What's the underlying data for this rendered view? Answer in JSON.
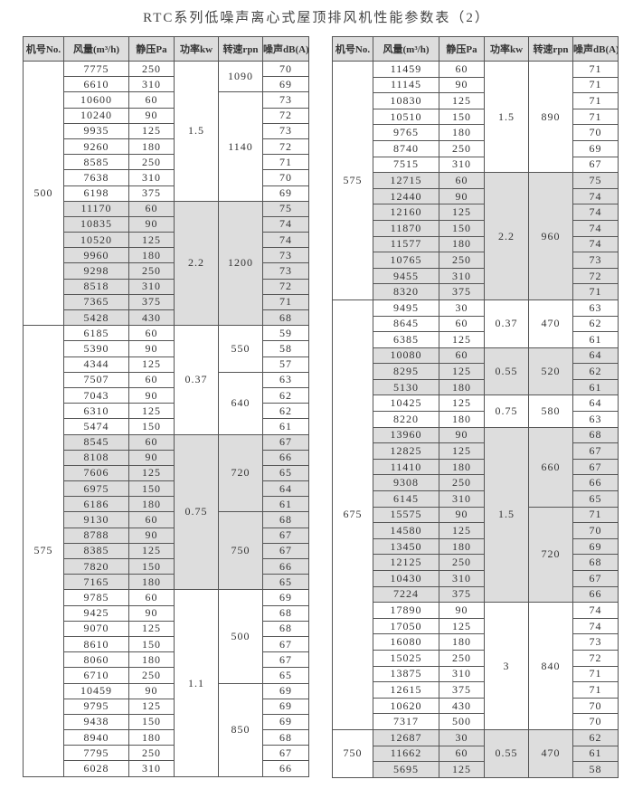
{
  "title": "RTC系列低噪声离心式屋顶排风机性能参数表（2）",
  "headers": [
    "机号No.",
    "风量(m³/h)",
    "静压Pa",
    "功率kw",
    "转速rpn",
    "噪声dB(A)"
  ],
  "colors": {
    "shaded": "#dddddd",
    "plain": "#ffffff",
    "border": "#555555"
  },
  "tables": [
    {
      "groups": [
        {
          "no": "500",
          "powers": [
            {
              "power": "1.5",
              "speeds": [
                {
                  "rpm": "1090",
                  "rows": [
                    [
                      "7775",
                      "250",
                      "70"
                    ],
                    [
                      "6610",
                      "310",
                      "69"
                    ]
                  ]
                },
                {
                  "rpm": "1140",
                  "rows": [
                    [
                      "10600",
                      "60",
                      "73"
                    ],
                    [
                      "10240",
                      "90",
                      "72"
                    ],
                    [
                      "9935",
                      "125",
                      "73"
                    ],
                    [
                      "9260",
                      "180",
                      "72"
                    ],
                    [
                      "8585",
                      "250",
                      "71"
                    ],
                    [
                      "7638",
                      "310",
                      "70"
                    ],
                    [
                      "6198",
                      "375",
                      "69"
                    ]
                  ]
                }
              ]
            },
            {
              "power": "2.2",
              "speeds": [
                {
                  "rpm": "1200",
                  "rows": [
                    [
                      "11170",
                      "60",
                      "75"
                    ],
                    [
                      "10835",
                      "90",
                      "74"
                    ],
                    [
                      "10520",
                      "125",
                      "74"
                    ],
                    [
                      "9960",
                      "180",
                      "73"
                    ],
                    [
                      "9298",
                      "250",
                      "73"
                    ],
                    [
                      "8518",
                      "310",
                      "72"
                    ],
                    [
                      "7365",
                      "375",
                      "71"
                    ],
                    [
                      "5428",
                      "430",
                      "68"
                    ]
                  ]
                }
              ]
            }
          ]
        },
        {
          "no": "575",
          "powers": [
            {
              "power": "0.37",
              "speeds": [
                {
                  "rpm": "550",
                  "rows": [
                    [
                      "6185",
                      "60",
                      "59"
                    ],
                    [
                      "5390",
                      "90",
                      "58"
                    ],
                    [
                      "4344",
                      "125",
                      "57"
                    ]
                  ]
                },
                {
                  "rpm": "640",
                  "rows": [
                    [
                      "7507",
                      "60",
                      "63"
                    ],
                    [
                      "7043",
                      "90",
                      "62"
                    ],
                    [
                      "6310",
                      "125",
                      "62"
                    ],
                    [
                      "5474",
                      "150",
                      "61"
                    ]
                  ]
                }
              ]
            },
            {
              "power": "0.75",
              "speeds": [
                {
                  "rpm": "720",
                  "rows": [
                    [
                      "8545",
                      "60",
                      "67"
                    ],
                    [
                      "8108",
                      "90",
                      "66"
                    ],
                    [
                      "7606",
                      "125",
                      "65"
                    ],
                    [
                      "6975",
                      "150",
                      "64"
                    ],
                    [
                      "6186",
                      "180",
                      "61"
                    ]
                  ]
                },
                {
                  "rpm": "750",
                  "rows": [
                    [
                      "9130",
                      "60",
                      "68"
                    ],
                    [
                      "8788",
                      "90",
                      "67"
                    ],
                    [
                      "8385",
                      "125",
                      "67"
                    ],
                    [
                      "7820",
                      "150",
                      "66"
                    ],
                    [
                      "7165",
                      "180",
                      "65"
                    ]
                  ]
                }
              ]
            },
            {
              "power": "1.1",
              "speeds": [
                {
                  "rpm": "500",
                  "rows": [
                    [
                      "9785",
                      "60",
                      "69"
                    ],
                    [
                      "9425",
                      "90",
                      "68"
                    ],
                    [
                      "9070",
                      "125",
                      "68"
                    ],
                    [
                      "8610",
                      "150",
                      "67"
                    ],
                    [
                      "8060",
                      "180",
                      "67"
                    ],
                    [
                      "6710",
                      "250",
                      "65"
                    ]
                  ]
                },
                {
                  "rpm": "850",
                  "rows": [
                    [
                      "10459",
                      "90",
                      "69"
                    ],
                    [
                      "9795",
                      "125",
                      "69"
                    ],
                    [
                      "9438",
                      "150",
                      "69"
                    ],
                    [
                      "8940",
                      "180",
                      "68"
                    ],
                    [
                      "7795",
                      "250",
                      "67"
                    ],
                    [
                      "6028",
                      "310",
                      "66"
                    ]
                  ]
                }
              ]
            }
          ]
        }
      ]
    },
    {
      "groups": [
        {
          "no": "575",
          "powers": [
            {
              "power": "1.5",
              "speeds": [
                {
                  "rpm": "890",
                  "rows": [
                    [
                      "11459",
                      "60",
                      "71"
                    ],
                    [
                      "11145",
                      "90",
                      "71"
                    ],
                    [
                      "10830",
                      "125",
                      "71"
                    ],
                    [
                      "10510",
                      "150",
                      "71"
                    ],
                    [
                      "9765",
                      "180",
                      "70"
                    ],
                    [
                      "8740",
                      "250",
                      "69"
                    ],
                    [
                      "7515",
                      "310",
                      "67"
                    ]
                  ]
                }
              ]
            },
            {
              "power": "2.2",
              "speeds": [
                {
                  "rpm": "960",
                  "rows": [
                    [
                      "12715",
                      "60",
                      "75"
                    ],
                    [
                      "12440",
                      "90",
                      "74"
                    ],
                    [
                      "12160",
                      "125",
                      "74"
                    ],
                    [
                      "11870",
                      "150",
                      "74"
                    ],
                    [
                      "11577",
                      "180",
                      "74"
                    ],
                    [
                      "10765",
                      "250",
                      "73"
                    ],
                    [
                      "9455",
                      "310",
                      "72"
                    ],
                    [
                      "8320",
                      "375",
                      "71"
                    ]
                  ]
                }
              ]
            }
          ]
        },
        {
          "no": "675",
          "powers": [
            {
              "power": "0.37",
              "speeds": [
                {
                  "rpm": "470",
                  "rows": [
                    [
                      "9495",
                      "30",
                      "63"
                    ],
                    [
                      "8645",
                      "60",
                      "62"
                    ],
                    [
                      "6385",
                      "125",
                      "61"
                    ]
                  ]
                }
              ]
            },
            {
              "power": "0.55",
              "speeds": [
                {
                  "rpm": "520",
                  "rows": [
                    [
                      "10080",
                      "60",
                      "64"
                    ],
                    [
                      "8295",
                      "125",
                      "62"
                    ],
                    [
                      "5130",
                      "180",
                      "61"
                    ]
                  ]
                }
              ]
            },
            {
              "power": "0.75",
              "speeds": [
                {
                  "rpm": "580",
                  "rows": [
                    [
                      "10425",
                      "125",
                      "64"
                    ],
                    [
                      "8220",
                      "180",
                      "63"
                    ]
                  ]
                }
              ]
            },
            {
              "power": "1.5",
              "speeds": [
                {
                  "rpm": "660",
                  "rows": [
                    [
                      "13960",
                      "90",
                      "68"
                    ],
                    [
                      "12825",
                      "125",
                      "67"
                    ],
                    [
                      "11410",
                      "180",
                      "67"
                    ],
                    [
                      "9308",
                      "250",
                      "66"
                    ],
                    [
                      "6145",
                      "310",
                      "65"
                    ]
                  ]
                },
                {
                  "rpm": "720",
                  "rows": [
                    [
                      "15575",
                      "90",
                      "71"
                    ],
                    [
                      "14580",
                      "125",
                      "70"
                    ],
                    [
                      "13450",
                      "180",
                      "69"
                    ],
                    [
                      "12125",
                      "250",
                      "68"
                    ],
                    [
                      "10430",
                      "310",
                      "67"
                    ],
                    [
                      "7224",
                      "375",
                      "66"
                    ]
                  ]
                }
              ]
            },
            {
              "power": "3",
              "speeds": [
                {
                  "rpm": "840",
                  "rows": [
                    [
                      "17890",
                      "90",
                      "74"
                    ],
                    [
                      "17050",
                      "125",
                      "74"
                    ],
                    [
                      "16080",
                      "180",
                      "73"
                    ],
                    [
                      "15025",
                      "250",
                      "72"
                    ],
                    [
                      "13875",
                      "310",
                      "71"
                    ],
                    [
                      "12615",
                      "375",
                      "71"
                    ],
                    [
                      "10620",
                      "430",
                      "70"
                    ],
                    [
                      "7317",
                      "500",
                      "70"
                    ]
                  ]
                }
              ]
            }
          ]
        },
        {
          "no": "750",
          "powers": [
            {
              "power": "0.55",
              "speeds": [
                {
                  "rpm": "470",
                  "rows": [
                    [
                      "12687",
                      "30",
                      "62"
                    ],
                    [
                      "11662",
                      "60",
                      "61"
                    ],
                    [
                      "5695",
                      "125",
                      "58"
                    ]
                  ]
                }
              ]
            }
          ]
        }
      ]
    }
  ]
}
